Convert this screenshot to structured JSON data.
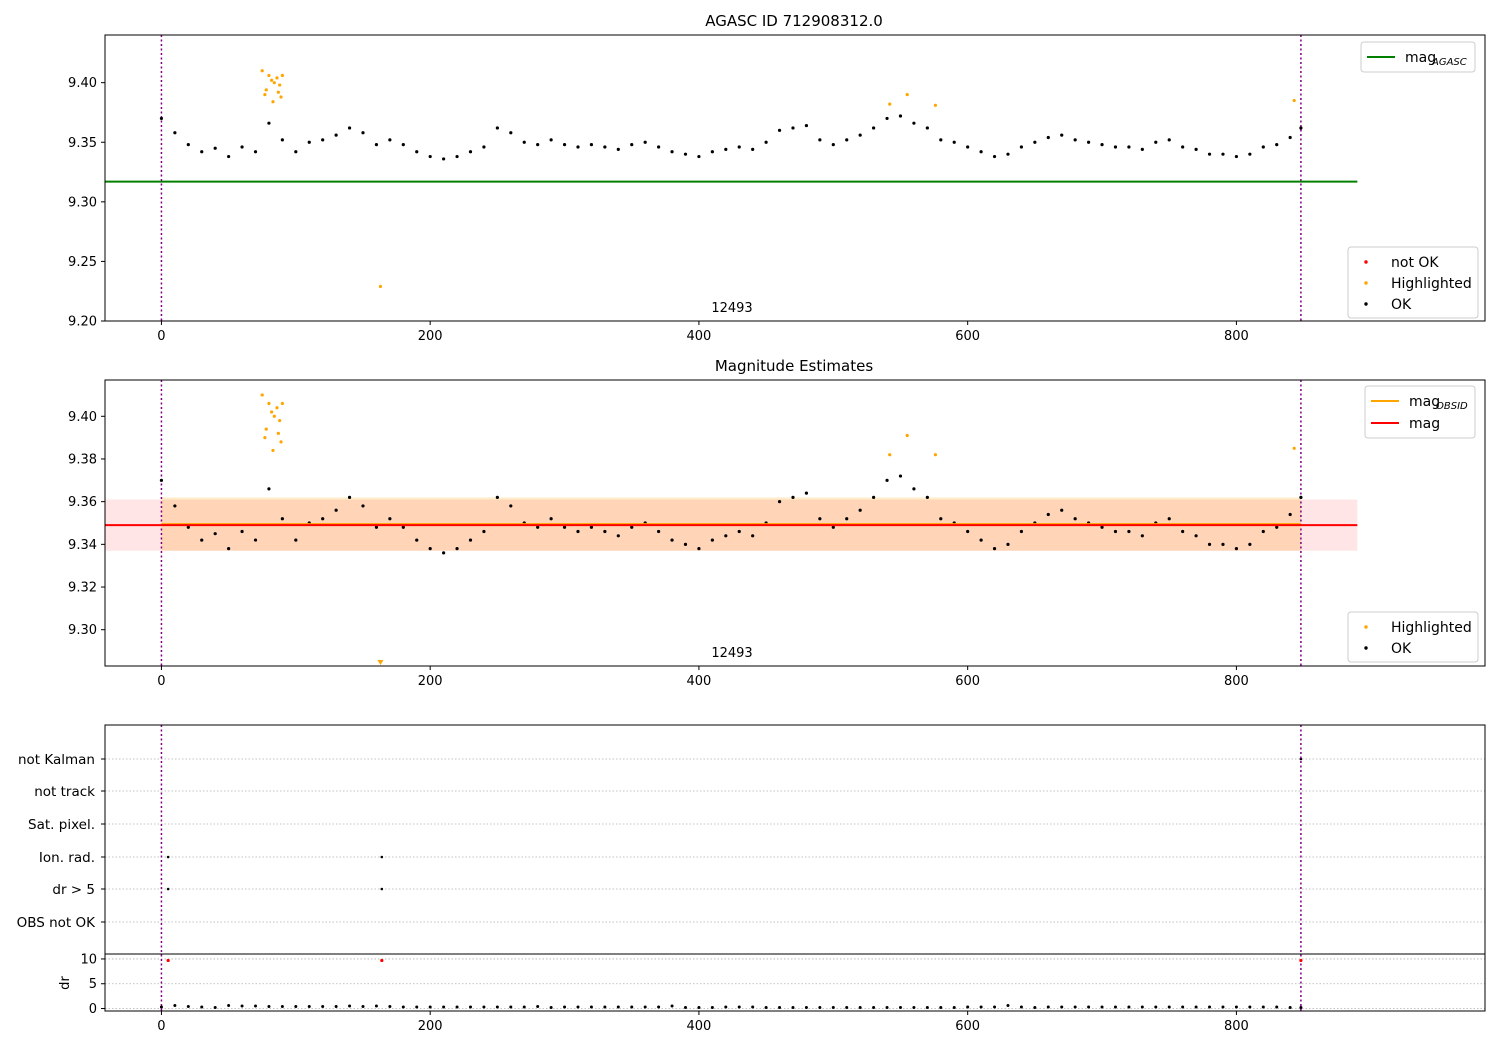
{
  "chart_data": [
    {
      "type": "scatter",
      "title": "AGASC ID 712908312.0",
      "xlim": [
        -42,
        985
      ],
      "ylim": [
        9.2,
        9.44
      ],
      "xticks": [
        0,
        200,
        400,
        600,
        800
      ],
      "yticks": [
        9.2,
        9.25,
        9.3,
        9.35,
        9.4
      ],
      "obsid_label": "12493",
      "obsid_label_x": 425,
      "obsid_boundaries": [
        0,
        848
      ],
      "reference_line": {
        "name": "mag$_{AGASC}$",
        "label": "mag",
        "sub": "AGASC",
        "value": 9.317,
        "x": [
          -42,
          890
        ],
        "color": "#008000"
      },
      "legends": {
        "upper": [
          {
            "label": "mag",
            "sub": "AGASC",
            "color": "#008000"
          }
        ],
        "lower": [
          {
            "label": "not OK",
            "color": "#ff0000"
          },
          {
            "label": "Highlighted",
            "color": "#ffa500"
          },
          {
            "label": "OK",
            "color": "#000000"
          }
        ]
      },
      "series": [
        {
          "name": "OK",
          "color": "#000000",
          "x": [
            0,
            10,
            20,
            30,
            40,
            50,
            60,
            70,
            80,
            90,
            100,
            110,
            120,
            130,
            140,
            150,
            160,
            170,
            180,
            190,
            200,
            210,
            220,
            230,
            240,
            250,
            260,
            270,
            280,
            290,
            300,
            310,
            320,
            330,
            340,
            350,
            360,
            370,
            380,
            390,
            400,
            410,
            420,
            430,
            440,
            450,
            460,
            470,
            480,
            490,
            500,
            510,
            520,
            530,
            540,
            550,
            560,
            570,
            580,
            590,
            600,
            610,
            620,
            630,
            640,
            650,
            660,
            670,
            680,
            690,
            700,
            710,
            720,
            730,
            740,
            750,
            760,
            770,
            780,
            790,
            800,
            810,
            820,
            830,
            840,
            848
          ],
          "y": [
            9.37,
            9.358,
            9.348,
            9.342,
            9.345,
            9.338,
            9.346,
            9.342,
            9.366,
            9.352,
            9.342,
            9.35,
            9.352,
            9.356,
            9.362,
            9.358,
            9.348,
            9.352,
            9.348,
            9.342,
            9.338,
            9.336,
            9.338,
            9.342,
            9.346,
            9.362,
            9.358,
            9.35,
            9.348,
            9.352,
            9.348,
            9.346,
            9.348,
            9.346,
            9.344,
            9.348,
            9.35,
            9.346,
            9.342,
            9.34,
            9.338,
            9.342,
            9.344,
            9.346,
            9.344,
            9.35,
            9.36,
            9.362,
            9.364,
            9.352,
            9.348,
            9.352,
            9.356,
            9.362,
            9.37,
            9.372,
            9.366,
            9.362,
            9.352,
            9.35,
            9.346,
            9.342,
            9.338,
            9.34,
            9.346,
            9.35,
            9.354,
            9.356,
            9.352,
            9.35,
            9.348,
            9.346,
            9.346,
            9.344,
            9.35,
            9.352,
            9.346,
            9.344,
            9.34,
            9.34,
            9.338,
            9.34,
            9.346,
            9.348,
            9.354,
            9.362
          ]
        },
        {
          "name": "Highlighted",
          "color": "#ffa500",
          "x": [
            75,
            78,
            80,
            82,
            84,
            86,
            88,
            90,
            77,
            83,
            87,
            89,
            163,
            542,
            555,
            576,
            843
          ],
          "y": [
            9.41,
            9.394,
            9.406,
            9.402,
            9.4,
            9.404,
            9.398,
            9.406,
            9.39,
            9.384,
            9.392,
            9.388,
            9.229,
            9.382,
            9.39,
            9.381,
            9.385
          ]
        }
      ]
    },
    {
      "type": "scatter",
      "title": "Magnitude Estimates",
      "xlim": [
        -42,
        985
      ],
      "ylim": [
        9.283,
        9.417
      ],
      "xticks": [
        0,
        200,
        400,
        600,
        800
      ],
      "yticks": [
        9.3,
        9.32,
        9.34,
        9.36,
        9.38,
        9.4
      ],
      "obsid_label": "12493",
      "obsid_label_x": 425,
      "obsid_boundaries": [
        0,
        848
      ],
      "lines": [
        {
          "name": "mag$_{OBSID}$",
          "label": "mag",
          "sub": "OBSID",
          "color": "#ffa500",
          "value": 9.3495,
          "x": [
            0,
            848
          ]
        },
        {
          "name": "mag",
          "label": "mag",
          "sub": "",
          "color": "#ff0000",
          "value": 9.349,
          "x": [
            -42,
            890
          ]
        }
      ],
      "bands": [
        {
          "color": "#ffa500",
          "opacity": 0.2,
          "y": [
            9.337,
            9.362
          ],
          "x": [
            0,
            848
          ]
        },
        {
          "color": "#ff0000",
          "opacity": 0.1,
          "y": [
            9.337,
            9.361
          ],
          "x": [
            -42,
            890
          ]
        }
      ],
      "legends": {
        "upper": [
          {
            "label": "mag",
            "sub": "OBSID",
            "color": "#ffa500"
          },
          {
            "label": "mag",
            "sub": "",
            "color": "#ff0000"
          }
        ],
        "lower": [
          {
            "label": "Highlighted",
            "color": "#ffa500"
          },
          {
            "label": "OK",
            "color": "#000000"
          }
        ]
      },
      "series": [
        {
          "name": "OK",
          "color": "#000000",
          "x": [
            0,
            10,
            20,
            30,
            40,
            50,
            60,
            70,
            80,
            90,
            100,
            110,
            120,
            130,
            140,
            150,
            160,
            170,
            180,
            190,
            200,
            210,
            220,
            230,
            240,
            250,
            260,
            270,
            280,
            290,
            300,
            310,
            320,
            330,
            340,
            350,
            360,
            370,
            380,
            390,
            400,
            410,
            420,
            430,
            440,
            450,
            460,
            470,
            480,
            490,
            500,
            510,
            520,
            530,
            540,
            550,
            560,
            570,
            580,
            590,
            600,
            610,
            620,
            630,
            640,
            650,
            660,
            670,
            680,
            690,
            700,
            710,
            720,
            730,
            740,
            750,
            760,
            770,
            780,
            790,
            800,
            810,
            820,
            830,
            840,
            848
          ],
          "y": [
            9.37,
            9.358,
            9.348,
            9.342,
            9.345,
            9.338,
            9.346,
            9.342,
            9.366,
            9.352,
            9.342,
            9.35,
            9.352,
            9.356,
            9.362,
            9.358,
            9.348,
            9.352,
            9.348,
            9.342,
            9.338,
            9.336,
            9.338,
            9.342,
            9.346,
            9.362,
            9.358,
            9.35,
            9.348,
            9.352,
            9.348,
            9.346,
            9.348,
            9.346,
            9.344,
            9.348,
            9.35,
            9.346,
            9.342,
            9.34,
            9.338,
            9.342,
            9.344,
            9.346,
            9.344,
            9.35,
            9.36,
            9.362,
            9.364,
            9.352,
            9.348,
            9.352,
            9.356,
            9.362,
            9.37,
            9.372,
            9.366,
            9.362,
            9.352,
            9.35,
            9.346,
            9.342,
            9.338,
            9.34,
            9.346,
            9.35,
            9.354,
            9.356,
            9.352,
            9.35,
            9.348,
            9.346,
            9.346,
            9.344,
            9.35,
            9.352,
            9.346,
            9.344,
            9.34,
            9.34,
            9.338,
            9.34,
            9.346,
            9.348,
            9.354,
            9.362
          ]
        },
        {
          "name": "Highlighted",
          "color": "#ffa500",
          "x": [
            75,
            78,
            80,
            82,
            84,
            86,
            88,
            90,
            77,
            83,
            87,
            89,
            542,
            555,
            576,
            843
          ],
          "y": [
            9.41,
            9.394,
            9.406,
            9.402,
            9.4,
            9.404,
            9.398,
            9.406,
            9.39,
            9.384,
            9.392,
            9.388,
            9.382,
            9.391,
            9.382,
            9.385
          ]
        }
      ],
      "off_scale_markers": [
        {
          "x": 163,
          "color": "#ffa500"
        }
      ]
    },
    {
      "type": "scatter",
      "title": "",
      "xlim": [
        -42,
        985
      ],
      "xticks": [
        0,
        200,
        400,
        600,
        800
      ],
      "obsid_boundaries": [
        0,
        848
      ],
      "categories": [
        "not Kalman",
        "not track",
        "Sat. pixel.",
        "Ion. rad.",
        "dr > 5",
        "OBS not OK"
      ],
      "flags": [
        {
          "category": "Ion. rad.",
          "x": [
            5,
            164
          ]
        },
        {
          "category": "dr > 5",
          "x": [
            5,
            164
          ]
        },
        {
          "category": "not Kalman",
          "x": [
            848
          ]
        }
      ],
      "dr": {
        "ylabel": "dr",
        "ylim": [
          -0.5,
          11.0
        ],
        "yticks": [
          0,
          5,
          10
        ],
        "x": [
          0,
          10,
          20,
          30,
          40,
          50,
          60,
          70,
          80,
          90,
          100,
          110,
          120,
          130,
          140,
          150,
          160,
          170,
          180,
          190,
          200,
          210,
          220,
          230,
          240,
          250,
          260,
          270,
          280,
          290,
          300,
          310,
          320,
          330,
          340,
          350,
          360,
          370,
          380,
          390,
          400,
          410,
          420,
          430,
          440,
          450,
          460,
          470,
          480,
          490,
          500,
          510,
          520,
          530,
          540,
          550,
          560,
          570,
          580,
          590,
          600,
          610,
          620,
          630,
          640,
          650,
          660,
          670,
          680,
          690,
          700,
          710,
          720,
          730,
          740,
          750,
          760,
          770,
          780,
          790,
          800,
          810,
          820,
          830,
          840,
          848
        ],
        "y": [
          0.3,
          0.6,
          0.4,
          0.3,
          0.2,
          0.6,
          0.5,
          0.5,
          0.4,
          0.4,
          0.4,
          0.4,
          0.4,
          0.4,
          0.5,
          0.4,
          0.5,
          0.4,
          0.3,
          0.3,
          0.3,
          0.3,
          0.3,
          0.3,
          0.3,
          0.3,
          0.3,
          0.3,
          0.4,
          0.2,
          0.3,
          0.3,
          0.3,
          0.3,
          0.3,
          0.3,
          0.3,
          0.3,
          0.5,
          0.2,
          0.2,
          0.2,
          0.3,
          0.3,
          0.3,
          0.2,
          0.2,
          0.2,
          0.2,
          0.2,
          0.2,
          0.2,
          0.2,
          0.2,
          0.2,
          0.2,
          0.2,
          0.2,
          0.2,
          0.2,
          0.3,
          0.3,
          0.3,
          0.6,
          0.3,
          0.2,
          0.3,
          0.3,
          0.3,
          0.3,
          0.3,
          0.3,
          0.3,
          0.3,
          0.3,
          0.3,
          0.3,
          0.3,
          0.3,
          0.3,
          0.3,
          0.3,
          0.3,
          0.3,
          0.2,
          0.2
        ],
        "flagged": [
          {
            "x": 5,
            "y": 9.7
          },
          {
            "x": 164,
            "y": 9.7
          },
          {
            "x": 848,
            "y": 9.7
          }
        ],
        "flag_color": "#ff0000"
      }
    }
  ]
}
